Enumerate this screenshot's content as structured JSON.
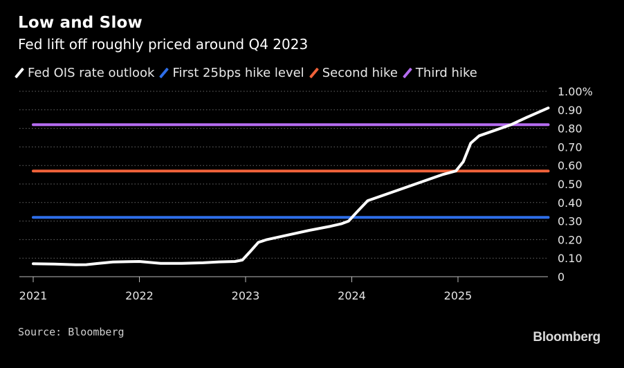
{
  "header": {
    "title": "Low and Slow",
    "subtitle": "Fed lift off roughly priced around Q4 2023"
  },
  "footer": {
    "source": "Source: Bloomberg",
    "logo": "Bloomberg"
  },
  "chart_data": {
    "type": "line",
    "title": "Low and Slow",
    "subtitle": "Fed lift off roughly priced around Q4 2023",
    "xlabel": "",
    "ylabel": "",
    "xlim": [
      2021,
      2025.85
    ],
    "ylim": [
      0,
      1.0
    ],
    "y_ticks": [
      "0",
      "0.10",
      "0.20",
      "0.30",
      "0.40",
      "0.50",
      "0.60",
      "0.70",
      "0.80",
      "0.90",
      "1.00%"
    ],
    "x_ticks": [
      "2021",
      "2022",
      "2023",
      "2024",
      "2025"
    ],
    "grid": "horizontal dotted",
    "legend_position": "top",
    "series": [
      {
        "name": "Fed OIS rate outlook",
        "color": "#ffffff",
        "x": [
          2021.0,
          2021.2,
          2021.4,
          2021.5,
          2021.6,
          2021.75,
          2021.9,
          2022.0,
          2022.1,
          2022.2,
          2022.4,
          2022.6,
          2022.75,
          2022.9,
          2022.97,
          2023.05,
          2023.12,
          2023.2,
          2023.4,
          2023.6,
          2023.8,
          2023.9,
          2023.97,
          2024.05,
          2024.15,
          2024.3,
          2024.5,
          2024.7,
          2024.85,
          2024.98,
          2025.05,
          2025.12,
          2025.2,
          2025.35,
          2025.5,
          2025.65,
          2025.85
        ],
        "values": [
          0.07,
          0.068,
          0.064,
          0.065,
          0.071,
          0.079,
          0.081,
          0.082,
          0.077,
          0.072,
          0.072,
          0.075,
          0.08,
          0.082,
          0.09,
          0.14,
          0.185,
          0.2,
          0.225,
          0.25,
          0.272,
          0.285,
          0.3,
          0.35,
          0.41,
          0.44,
          0.48,
          0.52,
          0.55,
          0.57,
          0.62,
          0.72,
          0.76,
          0.79,
          0.82,
          0.86,
          0.91
        ]
      },
      {
        "name": "First 25bps hike level",
        "color": "#2e6ee8",
        "x": [
          2021.0,
          2025.85
        ],
        "values": [
          0.32,
          0.32
        ]
      },
      {
        "name": "Second hike",
        "color": "#f0623a",
        "x": [
          2021.0,
          2025.85
        ],
        "values": [
          0.57,
          0.57
        ]
      },
      {
        "name": "Third hike",
        "color": "#b56cf0",
        "x": [
          2021.0,
          2025.85
        ],
        "values": [
          0.82,
          0.82
        ]
      }
    ]
  }
}
